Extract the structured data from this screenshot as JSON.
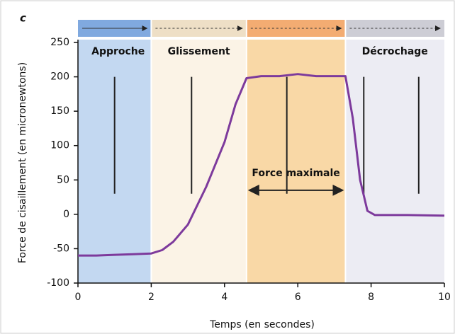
{
  "chart_data": {
    "type": "line",
    "panel": "c",
    "x_label": "Temps (en secondes)",
    "y_label": "Force de cisaillement (en micronewtons)",
    "xlim": [
      0,
      10
    ],
    "ylim": [
      -100,
      250
    ],
    "xticks": [
      0,
      2,
      4,
      6,
      8,
      10
    ],
    "yticks": [
      -100,
      -50,
      0,
      50,
      100,
      150,
      200,
      250
    ],
    "phases": [
      {
        "name": "Approche",
        "start": 0,
        "end": 2,
        "color": "#c3d8f1",
        "strip_color": "#80a9df"
      },
      {
        "name": "Glissement",
        "start": 2,
        "end": 4.6,
        "color": "#fbf3e6",
        "strip_color": "#eedfc6"
      },
      {
        "start": 4.6,
        "end": 7.3,
        "color": "#f9d8a6",
        "strip_color": "#f3ac72"
      },
      {
        "name": "Décrochage",
        "start": 7.3,
        "end": 10,
        "color": "#ececf3",
        "strip_color": "#cdcdd5"
      }
    ],
    "annotation": {
      "text": "Force maximale",
      "x": [
        4.6,
        7.3
      ],
      "y": 35
    },
    "x": [
      0,
      0.5,
      1,
      1.5,
      2,
      2.3,
      2.6,
      3,
      3.5,
      4,
      4.3,
      4.6,
      5,
      5.5,
      6,
      6.5,
      7,
      7.3,
      7.5,
      7.7,
      7.9,
      8.1,
      9,
      10
    ],
    "series": [
      {
        "color": "#7d3a9c",
        "values": [
          -60,
          -60,
          -59,
          -58,
          -57,
          -52,
          -40,
          -15,
          40,
          105,
          160,
          198,
          201,
          201,
          204,
          201,
          201,
          201,
          140,
          50,
          5,
          -1,
          -1,
          -2
        ]
      }
    ]
  }
}
